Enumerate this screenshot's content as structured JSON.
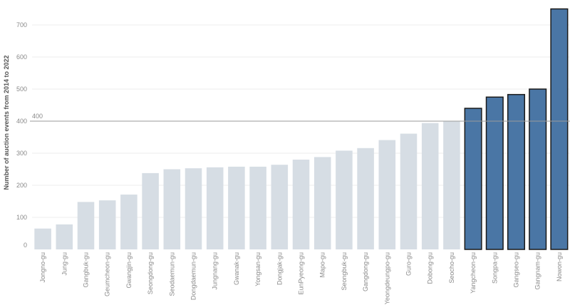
{
  "chart_data": {
    "type": "bar",
    "ylabel": "Number of auction events from 2014 to 2022",
    "ylim": [
      0,
      760
    ],
    "yticks": [
      0,
      100,
      200,
      300,
      400,
      500,
      600,
      700
    ],
    "grid": true,
    "reference_line": {
      "value": 400,
      "label": "400"
    },
    "categories": [
      "Jongno-gu",
      "Jung-gu",
      "Gangbuk-gu",
      "Geumcheon-gu",
      "Gwangjin-gu",
      "Seongdong-gu",
      "Seodaemun-gu",
      "Dongdaemun-gu",
      "Jungnang-gu",
      "Gwanak-gu",
      "Yongsan-gu",
      "Dongjak-gu",
      "EunPyeong-gu",
      "Mapo-gu",
      "Seongbuk-gu",
      "Gangdong-gu",
      "Yeongdeungpo-gu",
      "Guro-gu",
      "Dobong-gu",
      "Seocho-gu",
      "Yangcheon-gu",
      "Songpa-gu",
      "Gangseo-gu",
      "Gangnam-gu",
      "Nowon-gu"
    ],
    "values": [
      65,
      78,
      148,
      153,
      171,
      238,
      250,
      253,
      256,
      258,
      258,
      264,
      280,
      288,
      308,
      316,
      341,
      361,
      394,
      400,
      440,
      475,
      483,
      500,
      750
    ],
    "highlight_threshold": 400,
    "colors": {
      "highlight": "#4a76a5",
      "highlight_stroke": "#1a1a1a",
      "base": "#d6dde4"
    }
  }
}
